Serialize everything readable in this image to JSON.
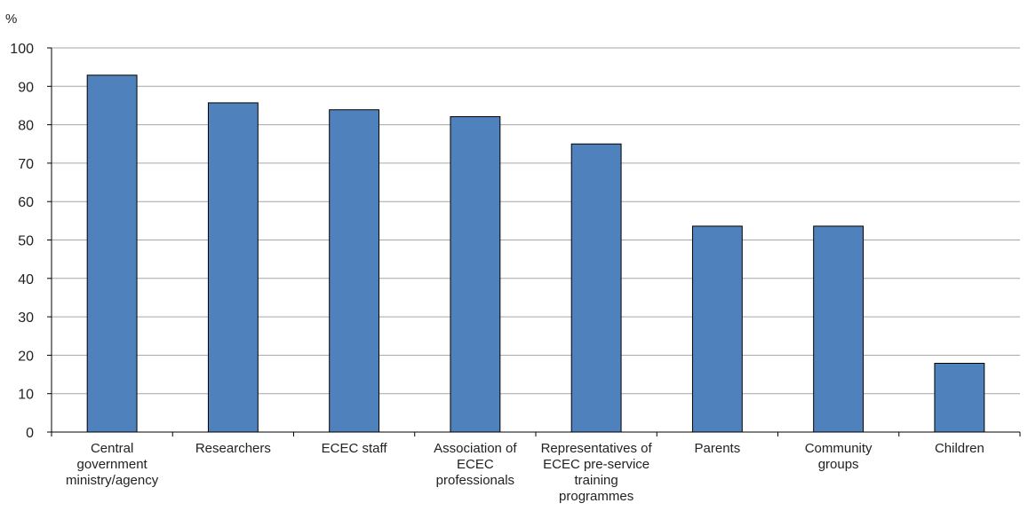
{
  "chart_data": {
    "type": "bar",
    "ylabel": "%",
    "ylim": [
      0,
      100
    ],
    "yticks": [
      0,
      10,
      20,
      30,
      40,
      50,
      60,
      70,
      80,
      90,
      100
    ],
    "grid": true,
    "categories": [
      [
        "Central",
        "government",
        "ministry/agency"
      ],
      [
        "Researchers"
      ],
      [
        "ECEC staff"
      ],
      [
        "Association of",
        "ECEC",
        "professionals"
      ],
      [
        "Representatives of",
        "ECEC pre-service",
        "training",
        "programmes"
      ],
      [
        "Parents"
      ],
      [
        "Community",
        "groups"
      ],
      [
        "Children"
      ]
    ],
    "values": [
      92.9,
      85.7,
      83.9,
      82.1,
      75.0,
      53.6,
      53.6,
      17.9
    ],
    "bar_color": "#4F81BD",
    "bar_edge_color": "#000000"
  }
}
